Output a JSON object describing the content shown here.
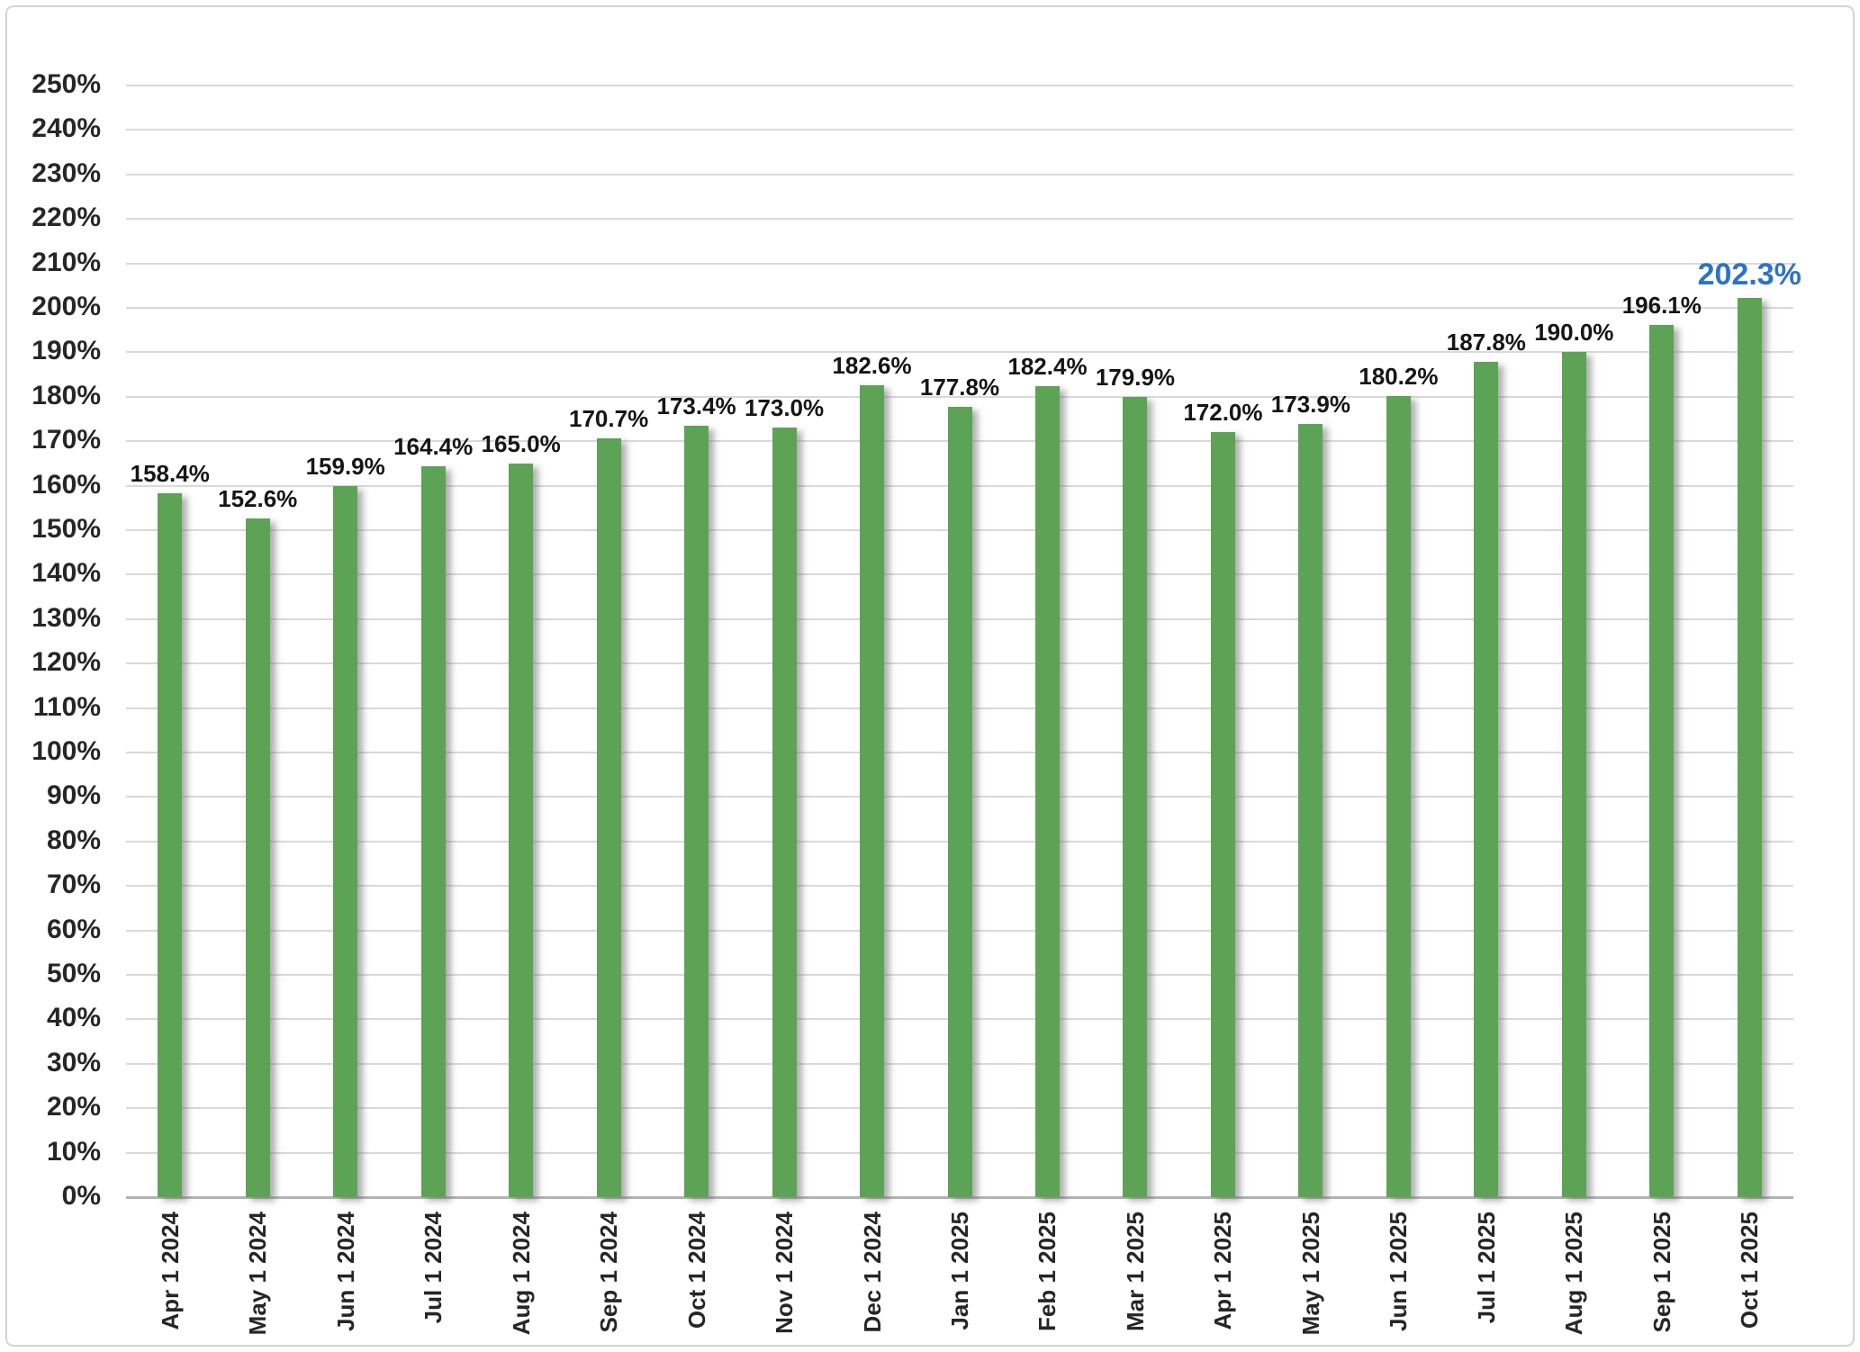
{
  "chart_data": {
    "type": "bar",
    "title": "",
    "categories": [
      "Apr 1 2024",
      "May 1 2024",
      "Jun 1 2024",
      "Jul 1 2024",
      "Aug 1 2024",
      "Sep 1 2024",
      "Oct 1 2024",
      "Nov 1 2024",
      "Dec 1 2024",
      "Jan 1 2025",
      "Feb 1 2025",
      "Mar 1 2025",
      "Apr 1 2025",
      "May 1 2025",
      "Jun 1 2025",
      "Jul 1 2025",
      "Aug 1 2025",
      "Sep 1 2025",
      "Oct 1 2025"
    ],
    "values": [
      158.4,
      152.6,
      159.9,
      164.4,
      165.0,
      170.7,
      173.4,
      173.0,
      182.6,
      177.8,
      182.4,
      179.9,
      172.0,
      173.9,
      180.2,
      187.8,
      190.0,
      196.1,
      202.3
    ],
    "value_labels": [
      "158.4%",
      "152.6%",
      "159.9%",
      "164.4%",
      "165.0%",
      "170.7%",
      "173.4%",
      "173.0%",
      "182.6%",
      "177.8%",
      "182.4%",
      "179.9%",
      "172.0%",
      "173.9%",
      "180.2%",
      "187.8%",
      "190.0%",
      "196.1%",
      "202.3%"
    ],
    "highlight_index": 18,
    "xlabel": "",
    "ylabel": "",
    "ylim": [
      0,
      250
    ],
    "ytick_step": 10,
    "ytick_suffix": "%",
    "grid": true,
    "legend": false,
    "x_label_rotation": -90,
    "colors": {
      "bar": "#5CA355",
      "value_label": "#151515",
      "highlight_label": "#2E72C7",
      "axis_label": "#262626",
      "gridline": "#D9D9D9",
      "axis_line": "#B3B3B3",
      "background": "#FFFFFF",
      "border": "#D3D3D3"
    }
  }
}
